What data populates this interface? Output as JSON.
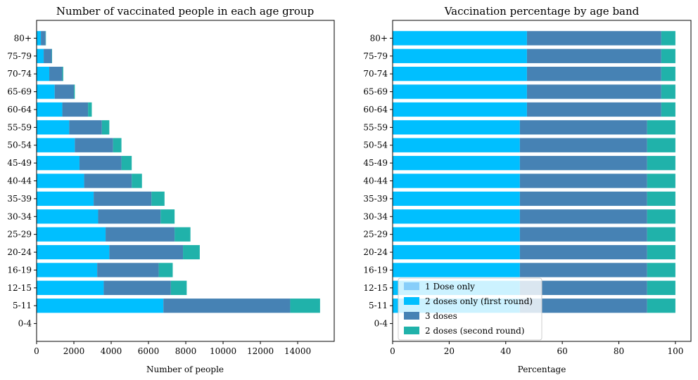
{
  "colors": {
    "dose1": "#87cefa",
    "dose2_first": "#00bfff",
    "dose3": "#4682b4",
    "dose2_second": "#20b2aa"
  },
  "chart_data": [
    {
      "type": "bar",
      "orientation": "horizontal",
      "stacked": true,
      "title": "Number of vaccinated people in each age group",
      "xlabel": "Number of people",
      "ylabel": "",
      "xlim": [
        0,
        15960
      ],
      "xticks": [
        0,
        2000,
        4000,
        6000,
        8000,
        10000,
        12000,
        14000
      ],
      "grid": false,
      "categories": [
        "0-4",
        "5-11",
        "12-15",
        "16-19",
        "20-24",
        "25-29",
        "30-34",
        "35-39",
        "40-44",
        "45-49",
        "50-54",
        "55-59",
        "60-64",
        "65-69",
        "70-74",
        "75-79",
        "80+"
      ],
      "series": [
        {
          "name": "1 Dose only",
          "color_key": "dose1",
          "values": [
            0,
            0,
            0,
            0,
            0,
            0,
            0,
            0,
            0,
            0,
            0,
            0,
            0,
            0,
            0,
            0,
            0
          ]
        },
        {
          "name": "2 doses only (first round)",
          "color_key": "dose2_first",
          "values": [
            0,
            6800,
            3600,
            3250,
            3900,
            3700,
            3300,
            3060,
            2550,
            2300,
            2050,
            1750,
            1380,
            970,
            680,
            380,
            230
          ]
        },
        {
          "name": "3 doses",
          "color_key": "dose3",
          "values": [
            0,
            6800,
            3600,
            3300,
            3950,
            3700,
            3350,
            3100,
            2550,
            2250,
            2050,
            1750,
            1380,
            1030,
            700,
            430,
            250
          ]
        },
        {
          "name": "2 doses (second round)",
          "color_key": "dose2_second",
          "values": [
            0,
            1600,
            850,
            750,
            900,
            850,
            750,
            700,
            550,
            550,
            450,
            400,
            200,
            50,
            50,
            20,
            20
          ]
        }
      ]
    },
    {
      "type": "bar",
      "orientation": "horizontal",
      "stacked": true,
      "title": "Vaccination percentage by age band",
      "xlabel": "Percentage",
      "ylabel": "",
      "xlim": [
        0,
        105.5
      ],
      "xticks": [
        0,
        20,
        40,
        60,
        80,
        100
      ],
      "grid": false,
      "legend_position": "lower-left",
      "categories": [
        "0-4",
        "5-11",
        "12-15",
        "16-19",
        "20-24",
        "25-29",
        "30-34",
        "35-39",
        "40-44",
        "45-49",
        "50-54",
        "55-59",
        "60-64",
        "65-69",
        "70-74",
        "75-79",
        "80+"
      ],
      "series": [
        {
          "name": "1 Dose only",
          "color_key": "dose1",
          "values": [
            0,
            0,
            0,
            0,
            0,
            0,
            0,
            0,
            0,
            0,
            0,
            0,
            0,
            0,
            0,
            0,
            0
          ]
        },
        {
          "name": "2 doses only (first round)",
          "color_key": "dose2_first",
          "values": [
            0,
            45,
            45,
            45,
            45,
            45,
            45,
            45,
            45,
            45,
            45,
            45,
            47.5,
            47.5,
            47.5,
            47.5,
            47.5
          ]
        },
        {
          "name": "3 doses",
          "color_key": "dose3",
          "values": [
            0,
            45,
            45,
            45,
            45,
            45,
            45,
            45,
            45,
            45,
            45,
            45,
            47.5,
            47.5,
            47.5,
            47.5,
            47.5
          ]
        },
        {
          "name": "2 doses (second round)",
          "color_key": "dose2_second",
          "values": [
            0,
            10,
            10,
            10,
            10,
            10,
            10,
            10,
            10,
            10,
            10,
            10,
            5,
            5,
            5,
            5,
            5
          ]
        }
      ]
    }
  ]
}
